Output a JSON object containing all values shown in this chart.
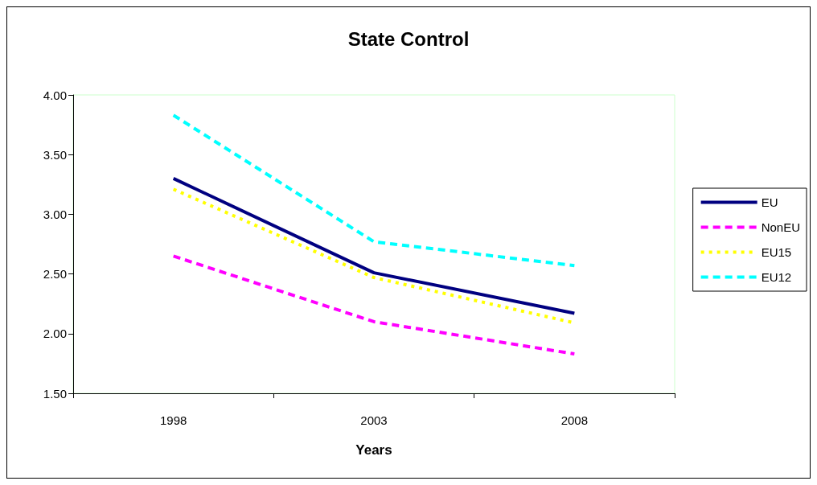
{
  "chart_data": {
    "type": "line",
    "title": "State Control",
    "xlabel": "Years",
    "categories": [
      "1998",
      "2003",
      "2008"
    ],
    "series": [
      {
        "name": "EU",
        "color": "#000080",
        "values": [
          3.3,
          2.51,
          2.17
        ],
        "line_style": "solid"
      },
      {
        "name": "NonEU",
        "color": "#ff00ff",
        "values": [
          2.65,
          2.1,
          1.83
        ],
        "line_style": "dashed"
      },
      {
        "name": "EU15",
        "color": "#ffff00",
        "values": [
          3.21,
          2.47,
          2.09
        ],
        "line_style": "dotted"
      },
      {
        "name": "EU12",
        "color": "#00ffff",
        "values": [
          3.83,
          2.77,
          2.57
        ],
        "line_style": "dashed"
      }
    ],
    "ylim": [
      1.5,
      4.0
    ],
    "yticks": [
      {
        "value": 1.5,
        "label": "1.50"
      },
      {
        "value": 2,
        "label": "2.00"
      },
      {
        "value": 2.5,
        "label": "2.50"
      },
      {
        "value": 3,
        "label": "3.00"
      },
      {
        "value": 3.5,
        "label": "3.50"
      },
      {
        "value": 4,
        "label": "4.00"
      }
    ],
    "grid": false,
    "legend": "right",
    "marker": "none"
  }
}
